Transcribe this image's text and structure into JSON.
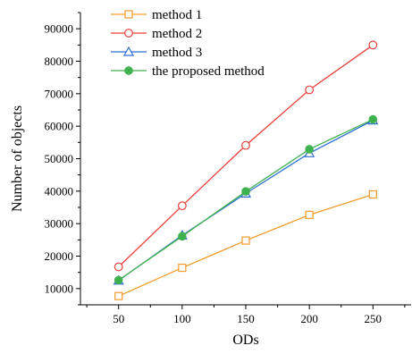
{
  "chart_data": {
    "type": "line",
    "title": "",
    "xlabel": "ODs",
    "ylabel": "Number of objects",
    "x": [
      50,
      100,
      150,
      200,
      250
    ],
    "xlim": [
      20,
      280
    ],
    "ylim": [
      5000,
      95000
    ],
    "xticks": [
      "50",
      "100",
      "150",
      "200",
      "250"
    ],
    "yticks": [
      "10000",
      "20000",
      "30000",
      "40000",
      "50000",
      "60000",
      "70000",
      "80000",
      "90000"
    ],
    "grid": false,
    "legend_position": "top-left",
    "series": [
      {
        "name": "method 1",
        "color": "#f39c2d",
        "marker": "open-square",
        "values": [
          7700,
          16400,
          24800,
          32700,
          39000
        ]
      },
      {
        "name": "method 2",
        "color": "#e8403a",
        "marker": "open-circle",
        "values": [
          16700,
          35500,
          54100,
          71200,
          85000
        ]
      },
      {
        "name": "method 3",
        "color": "#2e6fd1",
        "marker": "open-triangle",
        "values": [
          12500,
          26400,
          39300,
          51700,
          61800
        ]
      },
      {
        "name": "the proposed method",
        "color": "#3fb24f",
        "marker": "filled-circle",
        "values": [
          12600,
          26100,
          39900,
          52900,
          62100
        ]
      }
    ]
  }
}
